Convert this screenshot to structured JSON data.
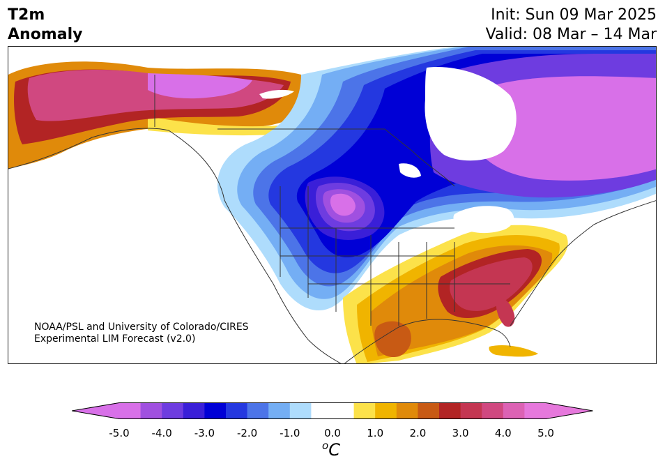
{
  "title": {
    "line1": "T2m",
    "line2": "Anomaly"
  },
  "init_label": "Init: Sun 09 Mar 2025",
  "valid_label": "Valid: 08 Mar – 14 Mar",
  "credit": {
    "line1": "NOAA/PSL and University of Colorado/CIRES",
    "line2": "Experimental LIM Forecast (v2.0)"
  },
  "colorbar": {
    "unit_sup": "o",
    "unit": "C",
    "ticks": [
      "-5.0",
      "-4.0",
      "-3.0",
      "-2.0",
      "-1.0",
      "0.0",
      "1.0",
      "2.0",
      "3.0",
      "4.0",
      "5.0"
    ],
    "colors": [
      "#d870e8",
      "#a050e0",
      "#6e3ce0",
      "#3a1fd8",
      "#0000d6",
      "#2438e0",
      "#4c74e8",
      "#74aef4",
      "#aedcfc",
      "#ffffff",
      "#ffffff",
      "#fce24a",
      "#f0b400",
      "#e08a0a",
      "#c85a14",
      "#b22424",
      "#c43652",
      "#d04880",
      "#dc62b4",
      "#e678dc"
    ],
    "over_color": "#e678dc",
    "under_color": "#d870e8"
  },
  "map": {
    "background": "#ffffff",
    "border_color": "#333333"
  }
}
